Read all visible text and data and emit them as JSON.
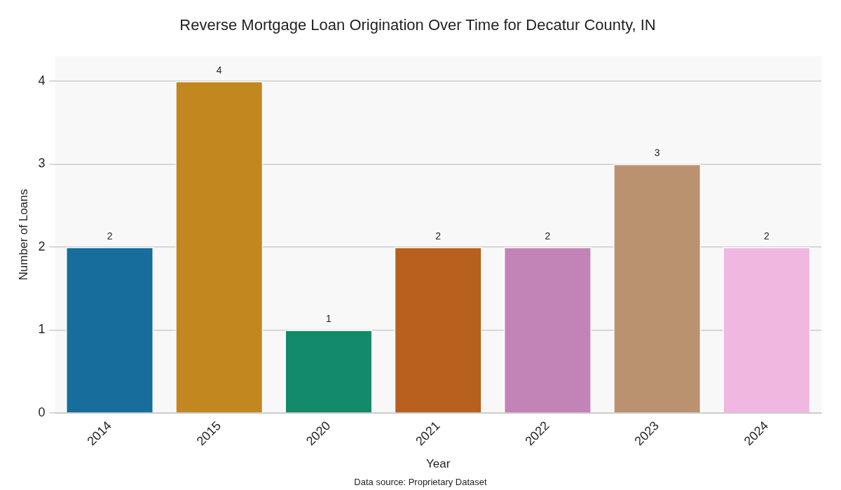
{
  "chart_data": {
    "type": "bar",
    "title": "Reverse Mortgage Loan Origination Over Time for Decatur County, IN",
    "xlabel": "Year",
    "ylabel": "Number of Loans",
    "categories": [
      "2014",
      "2015",
      "2020",
      "2021",
      "2022",
      "2023",
      "2024"
    ],
    "values": [
      2,
      4,
      1,
      2,
      2,
      3,
      2
    ],
    "colors": [
      "#176d9c",
      "#c2871f",
      "#138a69",
      "#b8601d",
      "#c283b6",
      "#bb9270",
      "#f0b7e0"
    ],
    "ylim": [
      0,
      4.3
    ],
    "yticks": [
      0,
      1,
      2,
      3,
      4
    ],
    "grid": "y",
    "legend": false,
    "data_labels": true,
    "annotations": [
      "Data source: Proprietary Dataset"
    ]
  }
}
